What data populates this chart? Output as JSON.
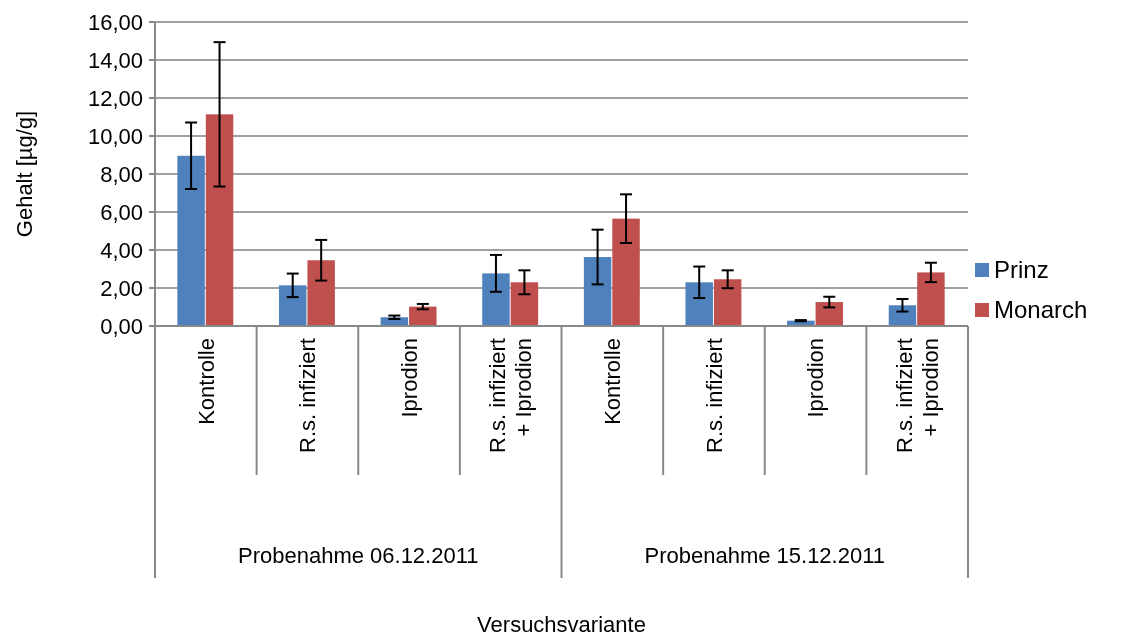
{
  "chart_data": {
    "type": "bar",
    "ylabel": "Gehalt [µg/g]",
    "categories": [
      "Kontrolle",
      "R.s. infiziert",
      "Iprodion",
      "R.s. infiziert + Iprodion",
      "Kontrolle",
      "R.s. infiziert",
      "Iprodion",
      "R.s. infiziert + Iprodion"
    ],
    "annotations": [
      "Probenahme 06.12.2011",
      "Probenahme 15.12.2011",
      "Versuchsvariante"
    ],
    "series": [
      {
        "name": "Prinz",
        "color": "#4f81bd",
        "values": [
          8.96,
          2.14,
          0.46,
          2.77,
          3.63,
          2.3,
          0.28,
          1.09
        ],
        "errors": [
          1.75,
          0.62,
          0.09,
          0.97,
          1.44,
          0.83,
          0.03,
          0.33
        ]
      },
      {
        "name": "Monarch",
        "color": "#c0504d",
        "values": [
          11.14,
          3.46,
          1.02,
          2.3,
          5.65,
          2.46,
          1.26,
          2.82
        ],
        "errors": [
          3.8,
          1.07,
          0.14,
          0.63,
          1.28,
          0.47,
          0.28,
          0.51
        ]
      }
    ],
    "ylim": [
      0,
      16
    ],
    "yticks": [
      {
        "value": 0,
        "label": "0,00"
      },
      {
        "value": 2,
        "label": "2,00"
      },
      {
        "value": 4,
        "label": "4,00"
      },
      {
        "value": 6,
        "label": "6,00"
      },
      {
        "value": 8,
        "label": "8,00"
      },
      {
        "value": 10,
        "label": "10,00"
      },
      {
        "value": 12,
        "label": "12,00"
      },
      {
        "value": 14,
        "label": "14,00"
      },
      {
        "value": 16,
        "label": "16,00"
      }
    ],
    "grid": "y",
    "legend": "right"
  }
}
